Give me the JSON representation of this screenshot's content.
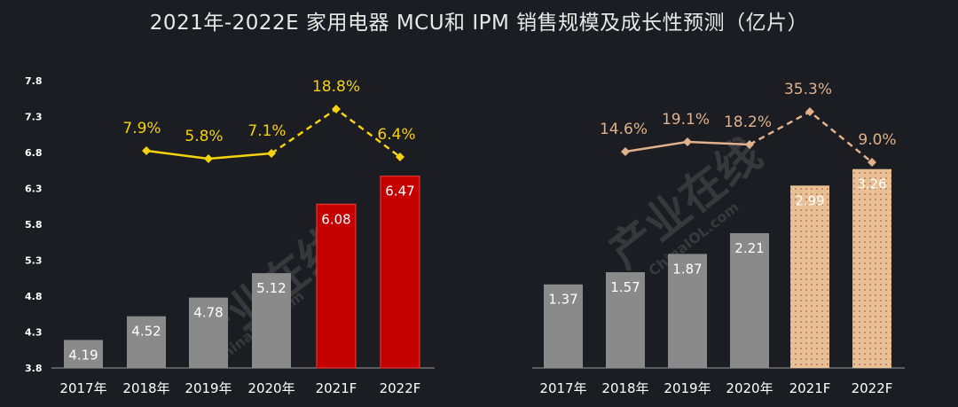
{
  "title": "2021年-2022E 家用电器 MCU和 IPM 销售规模及成长性预测（亿片）",
  "watermark": {
    "text": "产业在线",
    "sub": "ChinaIOL.com"
  },
  "colors": {
    "background": "#1b1d22",
    "gray_bar": "#8a8a8a",
    "red_bar": "#c40000",
    "tan_bar": "#e9bf96",
    "mcu_line": "#f5d20c",
    "ipm_line": "#dfb18c",
    "text": "#ffffff"
  },
  "chart_data": [
    {
      "type": "bar",
      "title": "",
      "categories": [
        "2017年",
        "2018年",
        "2019年",
        "2020年",
        "2021F",
        "2022F"
      ],
      "ylim": [
        3.8,
        7.8
      ],
      "y_ticks": [
        "3.8",
        "4.3",
        "4.8",
        "5.3",
        "5.8",
        "6.3",
        "6.8",
        "7.3",
        "7.8"
      ],
      "grid": false,
      "legend": "none",
      "series": [
        {
          "values": [
            4.19,
            4.52,
            4.78,
            5.12,
            6.08,
            6.47
          ],
          "labels": [
            "4.19",
            "4.52",
            "4.78",
            "5.12",
            "6.08",
            "6.47"
          ]
        }
      ],
      "growth": {
        "labels": [
          "7.9%",
          "5.8%",
          "7.1%",
          "18.8%",
          "6.4%"
        ],
        "categories": [
          "2018年",
          "2019年",
          "2020年",
          "2021F",
          "2022F"
        ],
        "forecast_from": "2021F"
      }
    },
    {
      "type": "bar",
      "title": "",
      "categories": [
        "2017年",
        "2018年",
        "2019年",
        "2020年",
        "2021F",
        "2022F"
      ],
      "grid": false,
      "legend": "none",
      "series": [
        {
          "values": [
            1.37,
            1.57,
            1.87,
            2.21,
            2.99,
            3.26
          ],
          "labels": [
            "1.37",
            "1.57",
            "1.87",
            "2.21",
            "2.99",
            "3.26"
          ]
        }
      ],
      "growth": {
        "labels": [
          "14.6%",
          "19.1%",
          "18.2%",
          "35.3%",
          "9.0%"
        ],
        "categories": [
          "2018年",
          "2019年",
          "2020年",
          "2021F",
          "2022F"
        ],
        "forecast_from": "2021F"
      }
    }
  ]
}
